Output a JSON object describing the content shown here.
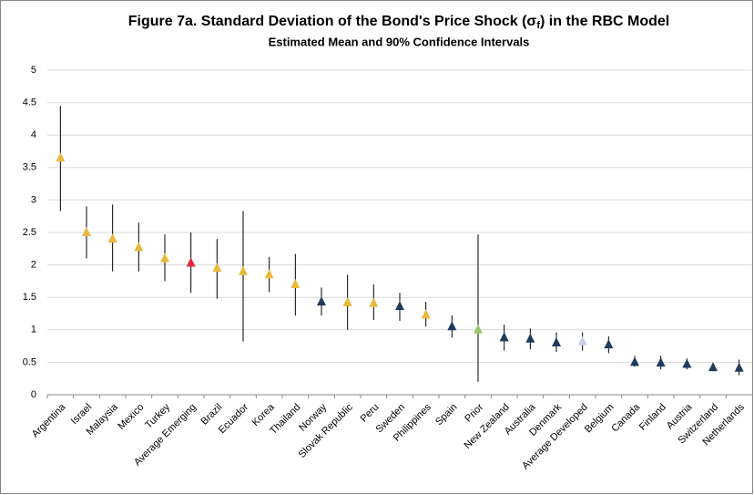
{
  "chart_data": {
    "type": "errorbar",
    "title": [
      "Figure 7a. Standard Deviation of the Bond's Price Shock (σ",
      "f",
      ") in the RBC Model"
    ],
    "subtitle": "Estimated Mean and 90% Confidence Intervals",
    "categories": [
      "Argentina",
      "Israel",
      "Malaysia",
      "Mexico",
      "Turkey",
      "Average Emerging",
      "Brazil",
      "Ecuador",
      "Korea",
      "Thailand",
      "Norway",
      "Slovak Republic",
      "Peru",
      "Sweden",
      "Philippines",
      "Spain",
      "Prior",
      "New Zealand",
      "Australia",
      "Denmark",
      "Average Developed",
      "Belgium",
      "Canada",
      "Finland",
      "Austria",
      "Switzerland",
      "Netherlands"
    ],
    "values": [
      3.65,
      2.5,
      2.4,
      2.27,
      2.1,
      2.03,
      1.95,
      1.9,
      1.85,
      1.7,
      1.43,
      1.42,
      1.41,
      1.36,
      1.23,
      1.05,
      1.0,
      0.88,
      0.86,
      0.8,
      0.82,
      0.77,
      0.5,
      0.49,
      0.47,
      0.42,
      0.41
    ],
    "lower": [
      2.83,
      2.1,
      1.9,
      1.9,
      1.75,
      1.57,
      1.48,
      0.82,
      1.58,
      1.22,
      1.22,
      1.0,
      1.15,
      1.14,
      1.05,
      0.88,
      0.2,
      0.68,
      0.7,
      0.66,
      0.68,
      0.64,
      0.43,
      0.39,
      0.39,
      0.36,
      0.3
    ],
    "upper": [
      4.45,
      2.9,
      2.93,
      2.65,
      2.47,
      2.5,
      2.4,
      2.83,
      2.12,
      2.17,
      1.65,
      1.85,
      1.7,
      1.57,
      1.43,
      1.22,
      2.47,
      1.08,
      1.02,
      0.96,
      0.96,
      0.9,
      0.6,
      0.6,
      0.56,
      0.48,
      0.54
    ],
    "colors": [
      "#e8b93c",
      "#e8b93c",
      "#e8b93c",
      "#e8b93c",
      "#e8b93c",
      "#e0263a",
      "#e8b93c",
      "#e8b93c",
      "#e8b93c",
      "#e8b93c",
      "#1f3a5c",
      "#e8b93c",
      "#e8b93c",
      "#1f3a5c",
      "#e8b93c",
      "#1f3a5c",
      "#9bc46a",
      "#1f3a5c",
      "#1f3a5c",
      "#1f3a5c",
      "#c9cde8",
      "#1f3a5c",
      "#1f3a5c",
      "#1f3a5c",
      "#1f3a5c",
      "#1f3a5c",
      "#1f3a5c"
    ],
    "ylim": [
      0,
      5
    ],
    "yticks": [
      0,
      0.5,
      1,
      1.5,
      2,
      2.5,
      3,
      3.5,
      4,
      4.5,
      5
    ],
    "grid": true
  }
}
